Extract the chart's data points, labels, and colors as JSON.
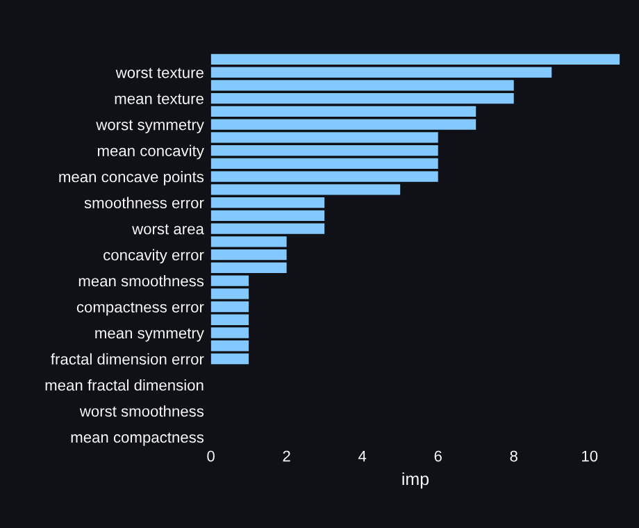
{
  "chart_data": {
    "type": "bar",
    "orientation": "horizontal",
    "xlabel": "imp",
    "color": "#83c9ff",
    "categories": [
      null,
      "worst texture",
      null,
      "mean texture",
      null,
      "worst symmetry",
      null,
      "mean concavity",
      null,
      "mean concave points",
      null,
      "smoothness error",
      null,
      "worst area",
      null,
      "concavity error",
      null,
      "mean smoothness",
      null,
      "compactness error",
      null,
      "mean symmetry",
      null,
      "fractal dimension error",
      null,
      "mean fractal dimension",
      null,
      "worst smoothness",
      null,
      "mean compactness"
    ],
    "values": [
      10.8,
      9,
      8,
      8,
      7,
      7,
      6,
      6,
      6,
      6,
      5,
      3,
      3,
      3,
      2,
      2,
      2,
      1,
      1,
      1,
      1,
      1,
      1,
      1,
      0,
      0,
      0,
      0,
      0,
      0
    ],
    "xlim": [
      0,
      10.8
    ],
    "xticks": [
      0,
      2,
      4,
      6,
      8,
      10
    ],
    "grid": false
  }
}
